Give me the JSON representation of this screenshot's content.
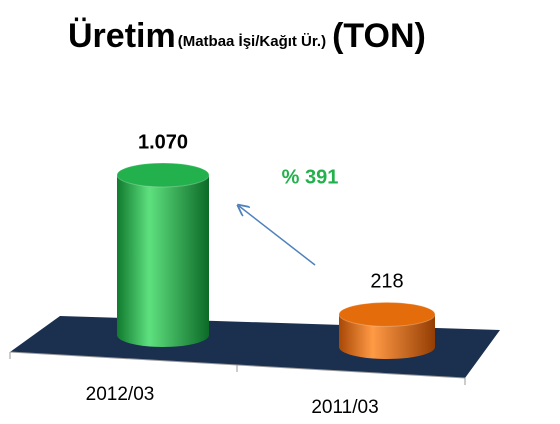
{
  "chart_data": {
    "type": "bar3d",
    "title": "Üretim",
    "subtitle": "(Matbaa İşi/Kağıt Ür.)",
    "unit": "(TON)",
    "categories": [
      "2012/03",
      "2011/03"
    ],
    "values": [
      1070,
      218
    ],
    "value_labels": [
      "1.070",
      "218"
    ],
    "colors": [
      "#22b14c",
      "#e46c0a"
    ],
    "annotation": "% 391",
    "annotation_color": "#22b14c"
  }
}
